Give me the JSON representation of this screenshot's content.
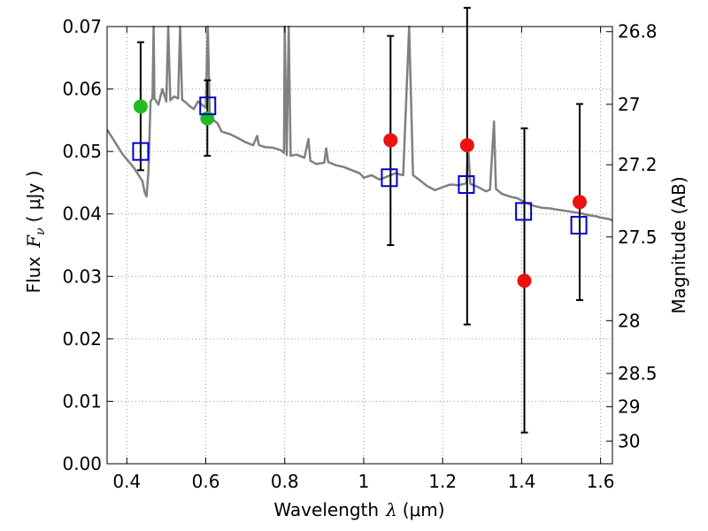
{
  "chart_data": {
    "type": "scatter",
    "xlabel": {
      "text": "Wavelength",
      "symbol": "λ",
      "unit": "(μm)"
    },
    "ylabel": {
      "text": "Flux",
      "symbol": "F",
      "subscript": "ν",
      "unit": "(  μJy )"
    },
    "y2label": "Magnitude (AB)",
    "xlim": [
      0.35,
      1.63
    ],
    "ylim": [
      0.0,
      0.07
    ],
    "grid": true,
    "x_ticks": [
      0.4,
      0.6,
      0.8,
      1.0,
      1.2,
      1.4,
      1.6
    ],
    "x_tick_labels": [
      "0.4",
      "0.6",
      "0.8",
      "1",
      "1.2",
      "1.4",
      "1.6"
    ],
    "y_ticks": [
      0.0,
      0.01,
      0.02,
      0.03,
      0.04,
      0.05,
      0.06,
      0.07
    ],
    "y_tick_labels": [
      "0.00",
      "0.01",
      "0.02",
      "0.03",
      "0.04",
      "0.05",
      "0.06",
      "0.07"
    ],
    "y2_ticks": [
      26.8,
      27,
      27.2,
      27.5,
      28,
      28.5,
      29,
      30
    ],
    "y2_tick_labels": [
      "26.8",
      "27",
      "27.2",
      "27.5",
      "28",
      "28.5",
      "29",
      "30"
    ],
    "colors": {
      "spectrum": "#808080",
      "model": "#0000cc",
      "red": "#ee1111",
      "green": "#22bb22",
      "errorbar": "#000000",
      "grid": "#999999"
    },
    "spectrum": [
      [
        0.35,
        0.0535
      ],
      [
        0.37,
        0.0515
      ],
      [
        0.39,
        0.0495
      ],
      [
        0.41,
        0.048
      ],
      [
        0.42,
        0.0472
      ],
      [
        0.43,
        0.0462
      ],
      [
        0.44,
        0.0452
      ],
      [
        0.445,
        0.0435
      ],
      [
        0.45,
        0.0428
      ],
      [
        0.455,
        0.047
      ],
      [
        0.46,
        0.058
      ],
      [
        0.465,
        0.0585
      ],
      [
        0.468,
        0.07
      ],
      [
        0.47,
        0.0585
      ],
      [
        0.48,
        0.0575
      ],
      [
        0.49,
        0.06
      ],
      [
        0.5,
        0.058
      ],
      [
        0.505,
        0.07
      ],
      [
        0.51,
        0.0582
      ],
      [
        0.52,
        0.0588
      ],
      [
        0.53,
        0.0585
      ],
      [
        0.535,
        0.07
      ],
      [
        0.54,
        0.0583
      ],
      [
        0.55,
        0.0578
      ],
      [
        0.56,
        0.0572
      ],
      [
        0.57,
        0.0568
      ],
      [
        0.58,
        0.058
      ],
      [
        0.59,
        0.0575
      ],
      [
        0.6,
        0.057
      ],
      [
        0.605,
        0.07
      ],
      [
        0.61,
        0.056
      ],
      [
        0.62,
        0.055
      ],
      [
        0.63,
        0.0545
      ],
      [
        0.64,
        0.0532
      ],
      [
        0.66,
        0.0528
      ],
      [
        0.68,
        0.0522
      ],
      [
        0.7,
        0.0515
      ],
      [
        0.72,
        0.051
      ],
      [
        0.73,
        0.0525
      ],
      [
        0.735,
        0.051
      ],
      [
        0.75,
        0.0507
      ],
      [
        0.77,
        0.0506
      ],
      [
        0.79,
        0.0502
      ],
      [
        0.798,
        0.0498
      ],
      [
        0.8,
        0.07
      ],
      [
        0.805,
        0.0494
      ],
      [
        0.81,
        0.07
      ],
      [
        0.815,
        0.0493
      ],
      [
        0.83,
        0.0495
      ],
      [
        0.85,
        0.049
      ],
      [
        0.86,
        0.052
      ],
      [
        0.865,
        0.0485
      ],
      [
        0.88,
        0.048
      ],
      [
        0.9,
        0.0482
      ],
      [
        0.905,
        0.0505
      ],
      [
        0.91,
        0.0483
      ],
      [
        0.93,
        0.0478
      ],
      [
        0.95,
        0.0475
      ],
      [
        0.97,
        0.047
      ],
      [
        0.99,
        0.0465
      ],
      [
        1.0,
        0.0458
      ],
      [
        1.02,
        0.0462
      ],
      [
        1.04,
        0.0455
      ],
      [
        1.06,
        0.046
      ],
      [
        1.08,
        0.0465
      ],
      [
        1.1,
        0.0462
      ],
      [
        1.115,
        0.07
      ],
      [
        1.125,
        0.0462
      ],
      [
        1.14,
        0.0455
      ],
      [
        1.16,
        0.0445
      ],
      [
        1.18,
        0.0438
      ],
      [
        1.2,
        0.0443
      ],
      [
        1.22,
        0.0447
      ],
      [
        1.24,
        0.0446
      ],
      [
        1.26,
        0.0449
      ],
      [
        1.265,
        0.0505
      ],
      [
        1.27,
        0.0448
      ],
      [
        1.29,
        0.0443
      ],
      [
        1.31,
        0.0436
      ],
      [
        1.32,
        0.0439
      ],
      [
        1.33,
        0.0548
      ],
      [
        1.335,
        0.044
      ],
      [
        1.35,
        0.0432
      ],
      [
        1.37,
        0.0428
      ],
      [
        1.39,
        0.0425
      ],
      [
        1.41,
        0.0418
      ],
      [
        1.43,
        0.0413
      ],
      [
        1.45,
        0.041
      ],
      [
        1.47,
        0.0409
      ],
      [
        1.49,
        0.0407
      ],
      [
        1.51,
        0.0405
      ],
      [
        1.53,
        0.0403
      ],
      [
        1.55,
        0.0401
      ],
      [
        1.57,
        0.0398
      ],
      [
        1.59,
        0.0396
      ],
      [
        1.6,
        0.0394
      ],
      [
        1.62,
        0.0392
      ],
      [
        1.63,
        0.039
      ]
    ],
    "model_points": [
      {
        "x": 0.435,
        "y": 0.05
      },
      {
        "x": 0.605,
        "y": 0.0573
      },
      {
        "x": 1.065,
        "y": 0.0458
      },
      {
        "x": 1.26,
        "y": 0.0447
      },
      {
        "x": 1.405,
        "y": 0.0404
      },
      {
        "x": 1.545,
        "y": 0.0382
      }
    ],
    "observed_red": [
      {
        "x": 1.068,
        "y": 0.0518,
        "err_low": 0.035,
        "err_high": 0.0685
      },
      {
        "x": 1.262,
        "y": 0.051,
        "err_low": 0.0223,
        "err_high": 0.073
      },
      {
        "x": 1.407,
        "y": 0.0293,
        "err_low": 0.005,
        "err_high": 0.0537
      },
      {
        "x": 1.547,
        "y": 0.0419,
        "err_low": 0.0262,
        "err_high": 0.0576
      }
    ],
    "observed_green": [
      {
        "x": 0.435,
        "y": 0.0572,
        "err_low": 0.047,
        "err_high": 0.0675
      },
      {
        "x": 0.604,
        "y": 0.0553,
        "err_low": 0.0493,
        "err_high": 0.0614
      }
    ]
  }
}
